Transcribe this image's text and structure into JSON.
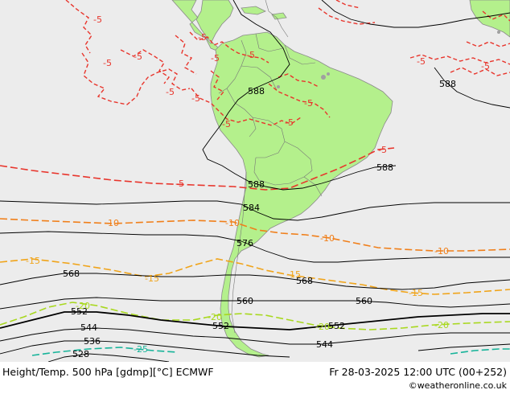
{
  "footer": {
    "title": "Height/Temp. 500 hPa [gdmp][°C] ECMWF",
    "datetime": "Fr 28-03-2025 12:00 UTC (00+252)",
    "credit": "©weatheronline.co.uk"
  },
  "colors": {
    "ocean": "#ececec",
    "land": "#b4f08c",
    "height_contour": "#000000",
    "temp_minus5": "#e8352c",
    "temp_minus10": "#f07f1a",
    "temp_minus15": "#f0a41a",
    "temp_minus20": "#a8d81e",
    "temp_minus25": "#18b49a"
  },
  "height_labels": [
    {
      "id": "588-north",
      "text": "588"
    },
    {
      "id": "588-ne",
      "text": "588"
    },
    {
      "id": "588-east",
      "text": "588"
    },
    {
      "id": "588-center",
      "text": "588"
    },
    {
      "id": "584",
      "text": "584"
    },
    {
      "id": "576",
      "text": "576"
    },
    {
      "id": "568-west",
      "text": "568"
    },
    {
      "id": "568-east",
      "text": "568"
    },
    {
      "id": "560-center",
      "text": "560"
    },
    {
      "id": "560-east",
      "text": "560"
    },
    {
      "id": "552-west",
      "text": "552"
    },
    {
      "id": "552-center",
      "text": "552"
    },
    {
      "id": "552-east",
      "text": "552"
    },
    {
      "id": "544-west",
      "text": "544"
    },
    {
      "id": "544-east",
      "text": "544"
    },
    {
      "id": "536",
      "text": "536"
    },
    {
      "id": "528",
      "text": "528"
    }
  ],
  "temp_labels": [
    {
      "id": "m5-a",
      "text": "-5",
      "cls": "t5"
    },
    {
      "id": "m5-b",
      "text": "-5",
      "cls": "t5"
    },
    {
      "id": "m5-c",
      "text": "-5",
      "cls": "t5"
    },
    {
      "id": "m5-d",
      "text": "-5",
      "cls": "t5"
    },
    {
      "id": "m5-e",
      "text": "-5",
      "cls": "t5"
    },
    {
      "id": "m5-f",
      "text": "-5",
      "cls": "t5"
    },
    {
      "id": "m5-g",
      "text": "-5",
      "cls": "t5"
    },
    {
      "id": "m5-h",
      "text": "-5",
      "cls": "t5"
    },
    {
      "id": "m5-i",
      "text": "-5",
      "cls": "t5"
    },
    {
      "id": "m5-j",
      "text": "-5",
      "cls": "t5"
    },
    {
      "id": "m5-k",
      "text": "-5",
      "cls": "t5"
    },
    {
      "id": "m5-l",
      "text": "-5",
      "cls": "t5"
    },
    {
      "id": "m5-m",
      "text": "-5",
      "cls": "t5"
    },
    {
      "id": "m5-n",
      "text": "-5",
      "cls": "t5"
    },
    {
      "id": "m5-o",
      "text": "-5",
      "cls": "t5"
    },
    {
      "id": "m10-a",
      "text": "-10",
      "cls": "t10"
    },
    {
      "id": "m10-b",
      "text": "-10",
      "cls": "t10"
    },
    {
      "id": "m10-c",
      "text": "-10",
      "cls": "t10"
    },
    {
      "id": "m10-d",
      "text": "-10",
      "cls": "t10"
    },
    {
      "id": "m15-a",
      "text": "-15",
      "cls": "t15"
    },
    {
      "id": "m15-b",
      "text": "-15",
      "cls": "t15"
    },
    {
      "id": "m15-c",
      "text": "-15",
      "cls": "t15"
    },
    {
      "id": "m15-d",
      "text": "-15",
      "cls": "t15"
    },
    {
      "id": "m20-a",
      "text": "-20",
      "cls": "t20"
    },
    {
      "id": "m20-b",
      "text": "-20",
      "cls": "t20"
    },
    {
      "id": "m20-c",
      "text": "-20",
      "cls": "t20"
    },
    {
      "id": "m20-d",
      "text": "-20",
      "cls": "t20"
    },
    {
      "id": "m25-a",
      "text": "-25",
      "cls": "t25"
    }
  ]
}
